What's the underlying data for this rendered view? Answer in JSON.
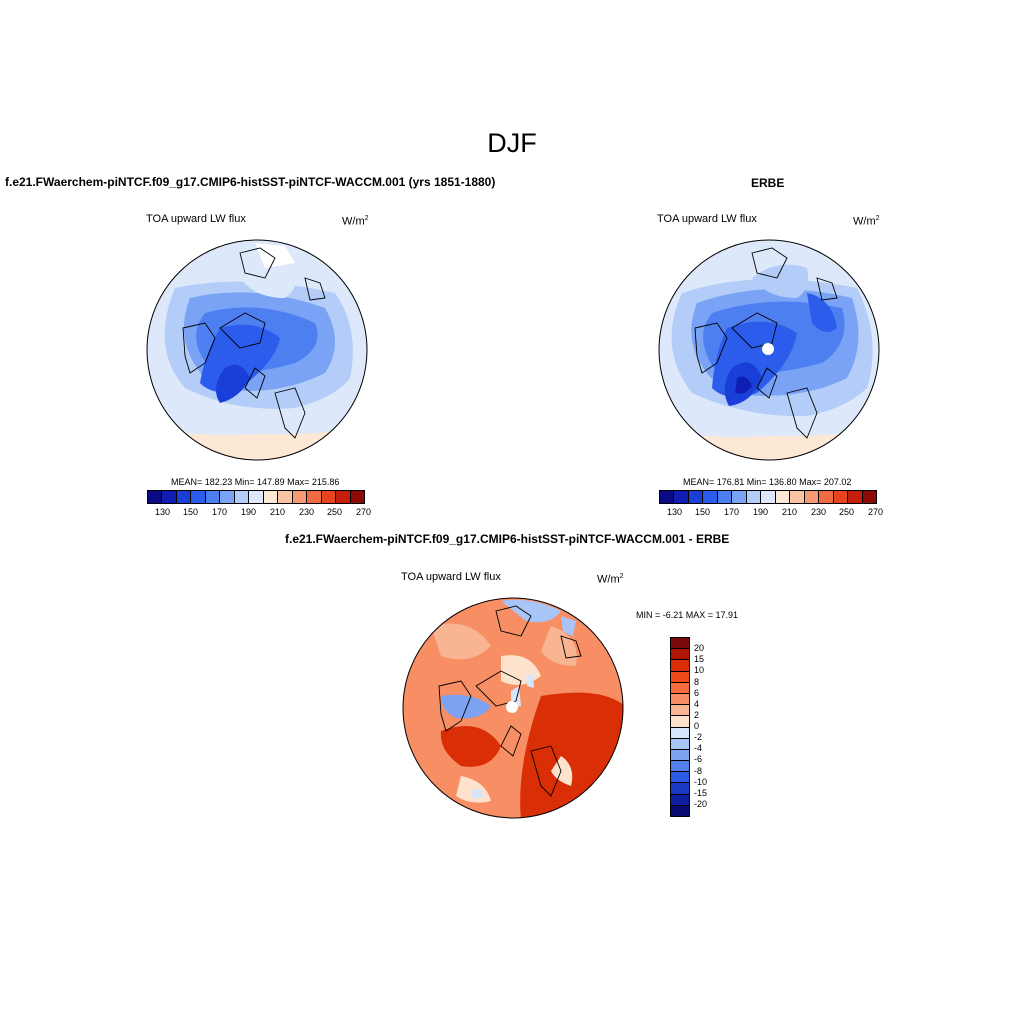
{
  "figure": {
    "title": "DJF",
    "panels": [
      {
        "title": "f.e21.FWaerchem-piNTCF.f09_g17.CMIP6-histSST-piNTCF-WACCM.001 (yrs 1851-1880)",
        "left_label": "TOA upward LW flux",
        "units": "W/m",
        "units_exp": "2",
        "stats": "MEAN= 182.23   Min= 147.89   Max= 215.86",
        "colorbar_labels": [
          "130",
          "150",
          "170",
          "190",
          "210",
          "230",
          "250",
          "270"
        ]
      },
      {
        "title": "ERBE",
        "left_label": "TOA upward LW flux",
        "units": "W/m",
        "units_exp": "2",
        "stats": "MEAN= 176.81   Min= 136.80   Max= 207.02",
        "colorbar_labels": [
          "130",
          "150",
          "170",
          "190",
          "210",
          "230",
          "250",
          "270"
        ]
      },
      {
        "title": "f.e21.FWaerchem-piNTCF.f09_g17.CMIP6-histSST-piNTCF-WACCM.001 - ERBE",
        "left_label": "TOA upward LW flux",
        "units": "W/m",
        "units_exp": "2",
        "stats": "MIN =  -6.21 MAX =  17.91",
        "colorbar_labels": [
          "20",
          "15",
          "10",
          "8",
          "6",
          "4",
          "2",
          "0",
          "-2",
          "-4",
          "-6",
          "-8",
          "-10",
          "-15",
          "-20"
        ]
      }
    ],
    "colors": {
      "abs_scale": [
        "#0a0a82",
        "#0f1fb4",
        "#1a3ed8",
        "#2b5ceb",
        "#4d7ff1",
        "#7aa3f5",
        "#b3ccf8",
        "#dde9fb",
        "#fde8d6",
        "#f9c3a4",
        "#f49b76",
        "#ef6b42",
        "#e9451c",
        "#c41f0a",
        "#8c0a05"
      ],
      "diff_scale": [
        "#7d0a0a",
        "#ad1505",
        "#d92e06",
        "#ef4a19",
        "#f46b3d",
        "#f78e64",
        "#f9b592",
        "#fde3cd",
        "#d8e6fb",
        "#a9c4f6",
        "#7da2f1",
        "#5280ec",
        "#2d5ce4",
        "#1b3bc6",
        "#0f1fa0",
        "#080a70"
      ]
    }
  }
}
